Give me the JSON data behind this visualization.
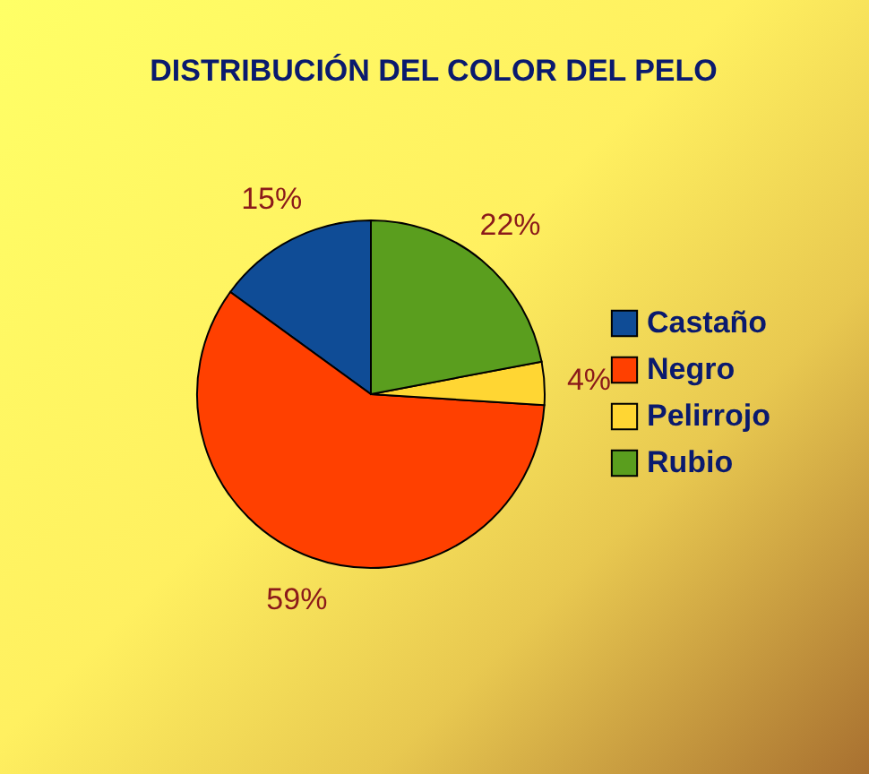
{
  "chart_data": {
    "type": "pie",
    "title": "DISTRIBUCIÓN DEL COLOR DEL PELO",
    "categories": [
      "Castaño",
      "Negro",
      "Pelirrojo",
      "Rubio"
    ],
    "values": [
      15,
      59,
      4,
      22
    ],
    "colors": [
      "#0f4c96",
      "#ff4000",
      "#ffd633",
      "#5a9e1e"
    ],
    "value_labels": [
      "15%",
      "59%",
      "4%",
      "22%"
    ],
    "legend": "right"
  }
}
